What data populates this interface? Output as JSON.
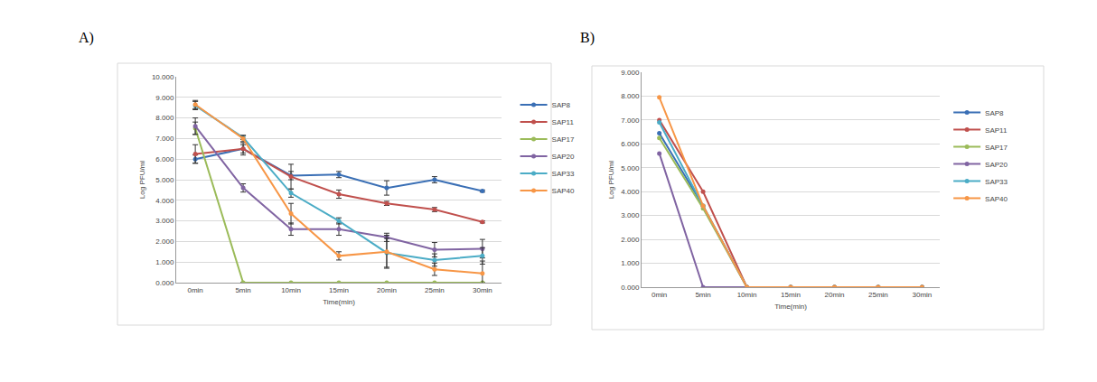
{
  "chart_data": [
    {
      "type": "line",
      "title": "A)",
      "x_label": "Time(min)",
      "y_label": "Log PFU/ml",
      "categories": [
        "0min",
        "5min",
        "10min",
        "15min",
        "20min",
        "25min",
        "30min"
      ],
      "ylim": [
        0,
        10
      ],
      "yticks": [
        {
          "value": 0,
          "label": "0.000"
        },
        {
          "value": 1,
          "label": "1.000"
        },
        {
          "value": 2,
          "label": "2.000"
        },
        {
          "value": 3,
          "label": "3.000"
        },
        {
          "value": 4,
          "label": "4.000"
        },
        {
          "value": 5,
          "label": "5.000"
        },
        {
          "value": 6,
          "label": "6.000"
        },
        {
          "value": 7,
          "label": "7.000"
        },
        {
          "value": 8,
          "label": "8.000"
        },
        {
          "value": 9,
          "label": "9.000"
        },
        {
          "value": 10,
          "label": "10.000"
        }
      ],
      "grid": true,
      "legend": "right",
      "marker": "circle",
      "series": [
        {
          "name": "SAP8",
          "color": "#3a6fb5",
          "values": [
            6.0,
            6.5,
            5.2,
            5.25,
            4.6,
            5.0,
            4.45
          ],
          "errors": [
            0.2,
            0.2,
            0.2,
            0.15,
            0.35,
            0.15,
            0.05
          ]
        },
        {
          "name": "SAP11",
          "color": "#c0504d",
          "values": [
            6.25,
            6.5,
            5.15,
            4.3,
            3.85,
            3.55,
            2.95
          ],
          "errors": [
            0.45,
            0.3,
            0.6,
            0.2,
            0.1,
            0.1,
            0.05
          ]
        },
        {
          "name": "SAP17",
          "color": "#9bbb59",
          "values": [
            7.5,
            0,
            0,
            0,
            0,
            0,
            0
          ],
          "errors": [
            0.3,
            0,
            0,
            0,
            0,
            0,
            0
          ]
        },
        {
          "name": "SAP20",
          "color": "#8064a2",
          "values": [
            7.6,
            4.6,
            2.6,
            2.6,
            2.2,
            1.6,
            1.65
          ],
          "errors": [
            0.4,
            0.2,
            0.3,
            0.3,
            0.2,
            0.35,
            0.45
          ]
        },
        {
          "name": "SAP33",
          "color": "#4bacc6",
          "values": [
            8.6,
            7.05,
            4.35,
            3.0,
            1.45,
            1.1,
            1.3
          ],
          "errors": [
            0.2,
            0.1,
            0.2,
            0.15,
            0.7,
            0.3,
            0.4
          ]
        },
        {
          "name": "SAP40",
          "color": "#f79646",
          "values": [
            8.65,
            7.0,
            3.35,
            1.3,
            1.5,
            0.65,
            0.45
          ],
          "errors": [
            0.2,
            0.15,
            0.5,
            0.2,
            0.8,
            0.3,
            0.6
          ]
        }
      ]
    },
    {
      "type": "line",
      "title": "B)",
      "x_label": "Time(min)",
      "y_label": "Log PFU/ml",
      "categories": [
        "0min",
        "5min",
        "10min",
        "15min",
        "20min",
        "25min",
        "30min"
      ],
      "ylim": [
        0,
        9
      ],
      "yticks": [
        {
          "value": 0,
          "label": "0.000"
        },
        {
          "value": 1,
          "label": "1.000"
        },
        {
          "value": 2,
          "label": "2.000"
        },
        {
          "value": 3,
          "label": "3.000"
        },
        {
          "value": 4,
          "label": "4.000"
        },
        {
          "value": 5,
          "label": "5.000"
        },
        {
          "value": 6,
          "label": "6.000"
        },
        {
          "value": 7,
          "label": "7.000"
        },
        {
          "value": 8,
          "label": "8.000"
        },
        {
          "value": 9,
          "label": "9.000"
        }
      ],
      "grid": true,
      "legend": "right",
      "marker": "circle",
      "series": [
        {
          "name": "SAP8",
          "color": "#3a6fb5",
          "values": [
            6.45,
            3.4,
            0,
            0,
            0,
            0,
            0
          ]
        },
        {
          "name": "SAP11",
          "color": "#c0504d",
          "values": [
            7.0,
            4.0,
            0,
            0,
            0,
            0,
            0
          ]
        },
        {
          "name": "SAP17",
          "color": "#9bbb59",
          "values": [
            6.25,
            3.3,
            0,
            0,
            0,
            0,
            0
          ]
        },
        {
          "name": "SAP20",
          "color": "#8064a2",
          "values": [
            5.6,
            0,
            0,
            0,
            0,
            0,
            0
          ]
        },
        {
          "name": "SAP33",
          "color": "#4bacc6",
          "values": [
            6.9,
            3.4,
            0,
            0,
            0,
            0,
            0
          ]
        },
        {
          "name": "SAP40",
          "color": "#f79646",
          "values": [
            7.95,
            3.4,
            0,
            0,
            0,
            0,
            0
          ]
        }
      ]
    }
  ]
}
